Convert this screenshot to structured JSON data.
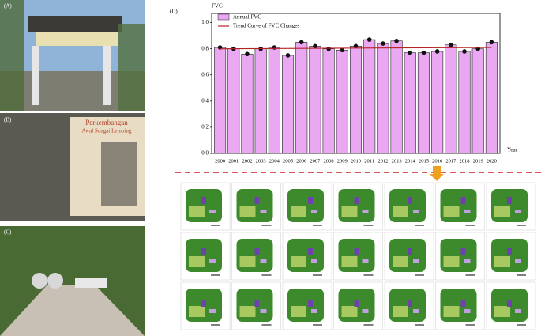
{
  "panels": {
    "a_label": "(A)",
    "b_label": "(B)",
    "c_label": "(C)",
    "d_label": "(D)",
    "sign_title": "Perkembangan",
    "sign_subtitle": "Awal Sungai Lembing"
  },
  "chart_data": {
    "type": "bar",
    "ylabel": "FVC",
    "xlabel": "Year",
    "categories": [
      "2000",
      "2001",
      "2002",
      "2003",
      "2004",
      "2005",
      "2006",
      "2007",
      "2008",
      "2009",
      "2010",
      "2011",
      "2012",
      "2013",
      "2014",
      "2015",
      "2016",
      "2017",
      "2018",
      "2019",
      "2020"
    ],
    "series": [
      {
        "name": "Annual FVC",
        "color": "#eaa8f2",
        "values": [
          0.81,
          0.8,
          0.76,
          0.8,
          0.81,
          0.75,
          0.85,
          0.82,
          0.8,
          0.79,
          0.82,
          0.87,
          0.84,
          0.86,
          0.77,
          0.77,
          0.78,
          0.83,
          0.78,
          0.8,
          0.85
        ]
      }
    ],
    "trend": {
      "name": "Trend Curve of FVC Changes",
      "color": "#b52222",
      "start": 0.8,
      "end": 0.81
    },
    "ylim": [
      0,
      1.07
    ],
    "yticks": [
      {
        "value": 0,
        "label": "0.0"
      },
      0.2,
      0.4,
      0.6,
      0.8,
      {
        "value": 1,
        "label": "1.0"
      }
    ]
  }
}
